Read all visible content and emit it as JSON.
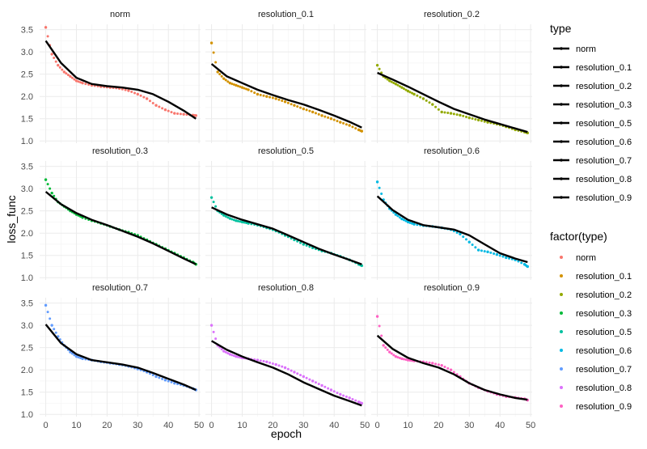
{
  "chart_data": {
    "type": "scatter",
    "xlabel": "epoch",
    "ylabel": "loss_func",
    "xlim": [
      -2,
      50.5
    ],
    "ylim": [
      0.95,
      3.62
    ],
    "x_ticks": [
      0,
      10,
      20,
      30,
      40,
      50
    ],
    "y_ticks": [
      1.0,
      1.5,
      2.0,
      2.5,
      3.0,
      3.5
    ],
    "x_tick_labels": [
      "0",
      "10",
      "20",
      "30",
      "40",
      "50"
    ],
    "y_tick_labels": [
      "1.0",
      "1.5",
      "2.0",
      "2.5",
      "3.0",
      "3.5"
    ],
    "grid": true,
    "facet_layout": "3x3",
    "colors": {
      "norm": "#F8766D",
      "resolution_0.1": "#D39200",
      "resolution_0.2": "#93AA00",
      "resolution_0.3": "#00BA38",
      "resolution_0.5": "#00C19F",
      "resolution_0.6": "#00B9E3",
      "resolution_0.7": "#619CFF",
      "resolution_0.8": "#DB72FB",
      "resolution_0.9": "#FF61C3",
      "fit_line": "#000000"
    },
    "legends": [
      {
        "title": "type",
        "items": [
          "norm",
          "resolution_0.1",
          "resolution_0.2",
          "resolution_0.3",
          "resolution_0.5",
          "resolution_0.6",
          "resolution_0.7",
          "resolution_0.8",
          "resolution_0.9"
        ]
      },
      {
        "title": "factor(type)",
        "items": [
          "norm",
          "resolution_0.1",
          "resolution_0.2",
          "resolution_0.3",
          "resolution_0.5",
          "resolution_0.6",
          "resolution_0.7",
          "resolution_0.8",
          "resolution_0.9"
        ]
      }
    ],
    "panels": [
      {
        "name": "norm",
        "points": {
          "x": [
            0,
            2,
            4,
            6,
            8,
            10,
            12,
            15,
            18,
            21,
            24,
            27,
            30,
            33,
            36,
            39,
            42,
            45,
            48,
            49
          ],
          "y": [
            3.55,
            2.95,
            2.7,
            2.55,
            2.45,
            2.35,
            2.3,
            2.25,
            2.22,
            2.2,
            2.18,
            2.13,
            2.05,
            1.95,
            1.8,
            1.7,
            1.62,
            1.6,
            1.58,
            1.57
          ]
        },
        "fit": {
          "x": [
            0,
            5,
            10,
            15,
            20,
            25,
            30,
            35,
            40,
            45,
            49
          ],
          "y": [
            3.25,
            2.75,
            2.42,
            2.28,
            2.23,
            2.2,
            2.15,
            2.05,
            1.88,
            1.68,
            1.5
          ]
        }
      },
      {
        "name": "resolution_0.1",
        "points": {
          "x": [
            0,
            2,
            4,
            6,
            8,
            10,
            12,
            15,
            18,
            21,
            24,
            27,
            30,
            33,
            36,
            39,
            42,
            45,
            48,
            49
          ],
          "y": [
            3.2,
            2.55,
            2.4,
            2.3,
            2.25,
            2.2,
            2.15,
            2.05,
            2.0,
            1.95,
            1.88,
            1.8,
            1.72,
            1.65,
            1.57,
            1.5,
            1.42,
            1.35,
            1.25,
            1.22
          ]
        },
        "fit": {
          "x": [
            0,
            5,
            10,
            15,
            20,
            25,
            30,
            35,
            40,
            45,
            49
          ],
          "y": [
            2.73,
            2.45,
            2.3,
            2.15,
            2.03,
            1.92,
            1.82,
            1.7,
            1.57,
            1.43,
            1.3
          ]
        }
      },
      {
        "name": "resolution_0.2",
        "points": {
          "x": [
            0,
            2,
            4,
            6,
            8,
            10,
            12,
            15,
            18,
            21,
            24,
            27,
            30,
            33,
            36,
            39,
            42,
            45,
            48,
            49
          ],
          "y": [
            2.7,
            2.45,
            2.35,
            2.28,
            2.2,
            2.12,
            2.05,
            1.95,
            1.82,
            1.65,
            1.62,
            1.58,
            1.52,
            1.47,
            1.42,
            1.38,
            1.32,
            1.25,
            1.2,
            1.18
          ]
        },
        "fit": {
          "x": [
            0,
            5,
            10,
            15,
            20,
            25,
            30,
            35,
            40,
            45,
            49
          ],
          "y": [
            2.53,
            2.38,
            2.22,
            2.05,
            1.88,
            1.72,
            1.6,
            1.48,
            1.38,
            1.28,
            1.2
          ]
        }
      },
      {
        "name": "resolution_0.3",
        "points": {
          "x": [
            0,
            2,
            4,
            6,
            8,
            10,
            12,
            15,
            18,
            21,
            24,
            27,
            30,
            33,
            36,
            39,
            42,
            45,
            48,
            49
          ],
          "y": [
            3.2,
            2.9,
            2.7,
            2.6,
            2.5,
            2.42,
            2.35,
            2.28,
            2.22,
            2.15,
            2.08,
            2.02,
            1.95,
            1.85,
            1.75,
            1.65,
            1.55,
            1.45,
            1.35,
            1.3
          ]
        },
        "fit": {
          "x": [
            0,
            5,
            10,
            15,
            20,
            25,
            30,
            35,
            40,
            45,
            49
          ],
          "y": [
            2.93,
            2.65,
            2.45,
            2.3,
            2.18,
            2.05,
            1.92,
            1.77,
            1.6,
            1.43,
            1.3
          ]
        }
      },
      {
        "name": "resolution_0.5",
        "points": {
          "x": [
            0,
            2,
            4,
            6,
            8,
            10,
            12,
            15,
            18,
            21,
            24,
            27,
            30,
            33,
            36,
            39,
            42,
            45,
            48,
            49
          ],
          "y": [
            2.8,
            2.5,
            2.4,
            2.33,
            2.28,
            2.25,
            2.22,
            2.18,
            2.12,
            2.05,
            1.95,
            1.85,
            1.75,
            1.67,
            1.6,
            1.55,
            1.48,
            1.4,
            1.3,
            1.27
          ]
        },
        "fit": {
          "x": [
            0,
            5,
            10,
            15,
            20,
            25,
            30,
            35,
            40,
            45,
            49
          ],
          "y": [
            2.58,
            2.42,
            2.3,
            2.2,
            2.1,
            1.95,
            1.8,
            1.65,
            1.52,
            1.4,
            1.3
          ]
        }
      },
      {
        "name": "resolution_0.6",
        "points": {
          "x": [
            0,
            2,
            4,
            6,
            8,
            10,
            12,
            15,
            18,
            21,
            24,
            27,
            30,
            33,
            36,
            39,
            42,
            45,
            48,
            49
          ],
          "y": [
            3.15,
            2.75,
            2.55,
            2.42,
            2.32,
            2.25,
            2.2,
            2.17,
            2.15,
            2.12,
            2.08,
            1.98,
            1.8,
            1.62,
            1.58,
            1.52,
            1.45,
            1.4,
            1.3,
            1.25
          ]
        },
        "fit": {
          "x": [
            0,
            5,
            10,
            15,
            20,
            25,
            30,
            35,
            40,
            45,
            49
          ],
          "y": [
            2.83,
            2.52,
            2.3,
            2.18,
            2.13,
            2.08,
            1.95,
            1.75,
            1.55,
            1.43,
            1.35
          ]
        }
      },
      {
        "name": "resolution_0.7",
        "points": {
          "x": [
            0,
            2,
            4,
            6,
            8,
            10,
            12,
            15,
            18,
            21,
            24,
            27,
            30,
            33,
            36,
            39,
            42,
            45,
            48,
            49
          ],
          "y": [
            3.45,
            3.0,
            2.75,
            2.55,
            2.4,
            2.3,
            2.25,
            2.22,
            2.18,
            2.15,
            2.12,
            2.08,
            2.02,
            1.95,
            1.85,
            1.77,
            1.7,
            1.65,
            1.58,
            1.55
          ]
        },
        "fit": {
          "x": [
            0,
            5,
            10,
            15,
            20,
            25,
            30,
            35,
            40,
            45,
            49
          ],
          "y": [
            3.02,
            2.6,
            2.35,
            2.22,
            2.17,
            2.12,
            2.05,
            1.93,
            1.8,
            1.67,
            1.55
          ]
        }
      },
      {
        "name": "resolution_0.8",
        "points": {
          "x": [
            0,
            2,
            4,
            6,
            8,
            10,
            12,
            15,
            18,
            21,
            24,
            27,
            30,
            33,
            36,
            39,
            42,
            45,
            48,
            49
          ],
          "y": [
            3.0,
            2.55,
            2.42,
            2.35,
            2.3,
            2.27,
            2.25,
            2.22,
            2.18,
            2.12,
            2.05,
            1.95,
            1.85,
            1.75,
            1.65,
            1.55,
            1.45,
            1.37,
            1.28,
            1.25
          ]
        },
        "fit": {
          "x": [
            0,
            5,
            10,
            15,
            20,
            25,
            30,
            35,
            40,
            45,
            49
          ],
          "y": [
            2.65,
            2.45,
            2.3,
            2.17,
            2.05,
            1.9,
            1.72,
            1.57,
            1.42,
            1.3,
            1.2
          ]
        }
      },
      {
        "name": "resolution_0.9",
        "points": {
          "x": [
            0,
            2,
            4,
            6,
            8,
            10,
            12,
            15,
            18,
            21,
            24,
            27,
            30,
            33,
            36,
            39,
            42,
            45,
            48,
            49
          ],
          "y": [
            3.2,
            2.55,
            2.4,
            2.3,
            2.25,
            2.22,
            2.2,
            2.18,
            2.15,
            2.1,
            2.0,
            1.85,
            1.7,
            1.6,
            1.52,
            1.45,
            1.4,
            1.38,
            1.35,
            1.32
          ]
        },
        "fit": {
          "x": [
            0,
            5,
            10,
            15,
            20,
            25,
            30,
            35,
            40,
            45,
            49
          ],
          "y": [
            2.77,
            2.47,
            2.27,
            2.15,
            2.05,
            1.9,
            1.7,
            1.55,
            1.45,
            1.37,
            1.33
          ]
        }
      }
    ]
  }
}
